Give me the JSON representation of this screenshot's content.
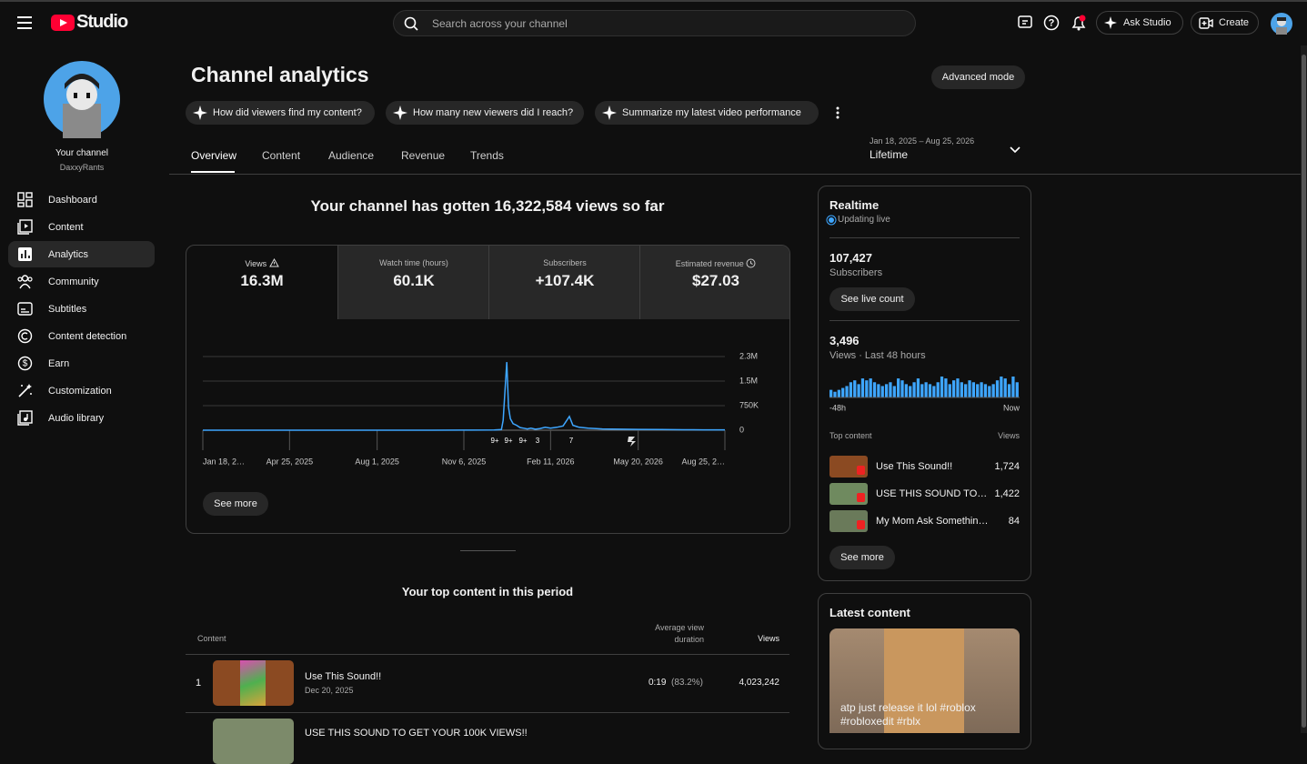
{
  "header": {
    "logo": "Studio",
    "search": "Search across your channel",
    "ask": "Ask Studio",
    "create": "Create"
  },
  "sidebar": {
    "channel_label": "Your channel",
    "channel_name": "DaxxyRants",
    "nav": [
      "Dashboard",
      "Content",
      "Analytics",
      "Community",
      "Subtitles",
      "Content detection",
      "Earn",
      "Customization",
      "Audio library"
    ]
  },
  "analytics": {
    "title": "Channel analytics",
    "advanced": "Advanced mode",
    "prompts": [
      "How did viewers find my content?",
      "How many new viewers did I reach?",
      "Summarize my latest video performance"
    ],
    "tabs": [
      "Overview",
      "Content",
      "Audience",
      "Revenue",
      "Trends"
    ],
    "date_range": "Jan 18, 2025 – Aug 25, 2026",
    "period": "Lifetime"
  },
  "overview": {
    "headline": "Your channel has gotten 16,322,584 views so far",
    "metrics": [
      {
        "label": "Views",
        "value": "16.3M"
      },
      {
        "label": "Watch time (hours)",
        "value": "60.1K"
      },
      {
        "label": "Subscribers",
        "value": "+107.4K"
      },
      {
        "label": "Estimated revenue",
        "value": "$27.03"
      }
    ],
    "markers": [
      "9+",
      "9+",
      "9+",
      "3",
      "7"
    ],
    "see_more": "See more"
  },
  "top_content": {
    "title": "Your top content in this period",
    "headers": [
      "Content",
      "Average view duration",
      "Views"
    ],
    "rows": [
      {
        "rank": "1",
        "title": "Use This Sound!!",
        "date": "Dec 20, 2025",
        "duration": "0:19",
        "percent": "(83.2%)",
        "views": "4,023,242"
      },
      {
        "title": "USE THIS SOUND TO GET YOUR 100K VIEWS!!"
      }
    ]
  },
  "realtime": {
    "title": "Realtime",
    "status": "Updating live",
    "subscribers": "107,427",
    "subscribers_label": "Subscribers",
    "live_count": "See live count",
    "views": "3,496",
    "views_label": "Views · Last 48 hours",
    "top_label": "Top content",
    "views_header": "Views",
    "items": [
      {
        "title": "Use This Sound!!",
        "views": "1,724"
      },
      {
        "title": "USE THIS SOUND TO…",
        "views": "1,422"
      },
      {
        "title": "My Mom Ask Somethin…",
        "views": "84"
      }
    ],
    "see_more": "See more"
  },
  "latest": {
    "title": "Latest content",
    "caption": "atp just release it lol #roblox #robloxedit #rblx"
  },
  "chart_data": [
    {
      "type": "line",
      "color": "#3ea6ff",
      "grid": true,
      "y_axis_side": "right",
      "x": [
        "2025-01-18",
        "2025-03-01",
        "2025-04-25",
        "2025-06-01",
        "2025-08-01",
        "2025-10-01",
        "2025-11-15",
        "2025-12-10",
        "2025-12-18",
        "2025-12-20",
        "2025-12-22",
        "2025-12-24",
        "2025-12-26",
        "2025-12-28",
        "2025-12-31",
        "2026-01-04",
        "2026-01-08",
        "2026-01-12",
        "2026-01-16",
        "2026-01-20",
        "2026-01-25",
        "2026-01-30",
        "2026-02-05",
        "2026-02-11",
        "2026-02-18",
        "2026-02-25",
        "2026-03-04",
        "2026-03-08",
        "2026-03-15",
        "2026-03-25",
        "2026-04-10",
        "2026-05-01",
        "2026-05-20",
        "2026-06-15",
        "2026-07-10",
        "2026-08-01",
        "2026-08-25"
      ],
      "values": [
        0,
        0,
        0,
        0,
        0,
        0,
        2000,
        5000,
        20000,
        300000,
        1200000,
        2080000,
        700000,
        350000,
        200000,
        150000,
        80000,
        60000,
        40000,
        60000,
        30000,
        50000,
        90000,
        60000,
        90000,
        130000,
        420000,
        150000,
        90000,
        60000,
        40000,
        30000,
        25000,
        20000,
        15000,
        12000,
        10000
      ],
      "xlim": [
        "2025-01-18",
        "2026-08-25"
      ],
      "xticks": [
        {
          "value": "2025-01-18",
          "label": "Jan 18, 2…"
        },
        {
          "value": "2025-04-25",
          "label": "Apr 25, 2025"
        },
        {
          "value": "2025-08-01",
          "label": "Aug 1, 2025"
        },
        {
          "value": "2025-11-06",
          "label": "Nov 6, 2025"
        },
        {
          "value": "2026-02-11",
          "label": "Feb 11, 2026"
        },
        {
          "value": "2026-05-20",
          "label": "May 20, 2026"
        },
        {
          "value": "2026-08-25",
          "label": "Aug 25, 2…"
        }
      ],
      "ylim": [
        0,
        2250000
      ],
      "yticks": [
        0,
        {
          "value": 750000,
          "label": "750K"
        },
        {
          "value": 1500000,
          "label": "1.5M"
        },
        {
          "value": 2250000,
          "label": "2.3M"
        }
      ]
    },
    {
      "type": "bar",
      "color": "#3ea6ff",
      "categories": [
        "-48h",
        null,
        null,
        null,
        null,
        null,
        null,
        null,
        null,
        null,
        null,
        null,
        null,
        null,
        null,
        null,
        null,
        null,
        null,
        null,
        null,
        null,
        null,
        null,
        null,
        null,
        null,
        null,
        null,
        null,
        null,
        null,
        null,
        null,
        null,
        null,
        null,
        null,
        null,
        null,
        null,
        null,
        null,
        null,
        null,
        null,
        null,
        "Now"
      ],
      "values": [
        40,
        30,
        40,
        50,
        60,
        80,
        90,
        70,
        100,
        90,
        100,
        80,
        70,
        60,
        70,
        80,
        60,
        100,
        90,
        70,
        60,
        80,
        100,
        70,
        80,
        70,
        60,
        80,
        110,
        100,
        70,
        90,
        100,
        80,
        70,
        90,
        80,
        70,
        80,
        70,
        60,
        70,
        90,
        110,
        100,
        70,
        110,
        80
      ]
    }
  ]
}
